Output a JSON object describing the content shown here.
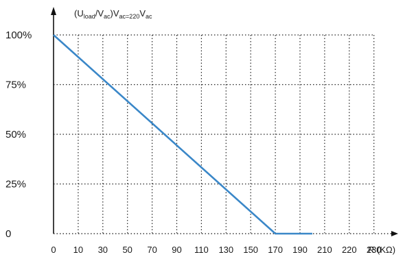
{
  "chart_data": {
    "type": "line",
    "title_parts": [
      "(U",
      "load",
      "/V",
      "ac",
      ")V",
      "ac=220",
      "V",
      "ac"
    ],
    "xlabel": "R (KΩ)",
    "x_ticks": [
      0,
      10,
      30,
      50,
      70,
      90,
      110,
      130,
      150,
      170,
      190,
      210,
      220,
      230
    ],
    "y_ticks": [
      {
        "value": 0,
        "label": "0"
      },
      {
        "value": 25,
        "label": "25%"
      },
      {
        "value": 50,
        "label": "50%"
      },
      {
        "value": 75,
        "label": "75%"
      },
      {
        "value": 100,
        "label": "100%"
      }
    ],
    "ylim": [
      0,
      100
    ],
    "grid": true,
    "series": [
      {
        "color": "#3a87c8",
        "points": [
          {
            "x": 0,
            "y": 100
          },
          {
            "x": 170,
            "y": 0
          },
          {
            "x": 200,
            "y": 0
          }
        ]
      }
    ]
  }
}
